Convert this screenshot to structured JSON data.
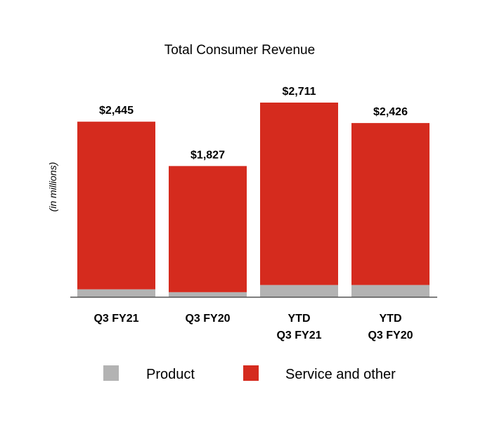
{
  "chart_data": {
    "type": "bar",
    "stacked": true,
    "title": "Total Consumer Revenue",
    "ylabel": "(in millions)",
    "xlabel": "",
    "categories": [
      [
        "Q3 FY21"
      ],
      [
        "Q3 FY20"
      ],
      [
        "YTD",
        "Q3 FY21"
      ],
      [
        "YTD",
        "Q3 FY20"
      ]
    ],
    "series": [
      {
        "name": "Product",
        "values": [
          110,
          70,
          170,
          170
        ],
        "color": "#b3b3b3"
      },
      {
        "name": "Service and other",
        "values": [
          2335,
          1757,
          2541,
          2256
        ],
        "color": "#d52b1e"
      }
    ],
    "totals": [
      2445,
      1827,
      2711,
      2426
    ],
    "total_labels": [
      "$2,445",
      "$1,827",
      "$2,711",
      "$2,426"
    ],
    "ylim": [
      0,
      2711
    ],
    "grid": false,
    "legend_position": "bottom"
  }
}
